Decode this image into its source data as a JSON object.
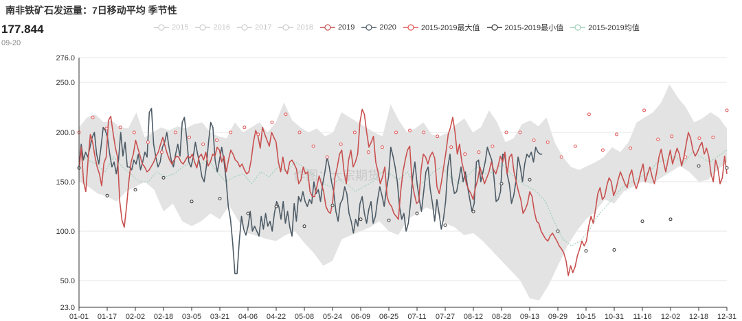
{
  "title": "南非铁矿石发运量：7日移动平均 季节性",
  "latest": {
    "value": "177.844",
    "date": "09-20"
  },
  "watermark": "作图：大宗期货",
  "legend": [
    {
      "name": "2015",
      "color": "#cccccc",
      "faded": true
    },
    {
      "name": "2016",
      "color": "#cccccc",
      "faded": true
    },
    {
      "name": "2017",
      "color": "#cccccc",
      "faded": true
    },
    {
      "name": "2018",
      "color": "#cccccc",
      "faded": true
    },
    {
      "name": "2019",
      "color": "#c8504f",
      "faded": false
    },
    {
      "name": "2020",
      "color": "#4d5b66",
      "faded": false
    },
    {
      "name": "2015-2019最大值",
      "color": "#e05555",
      "faded": false
    },
    {
      "name": "2015-2019最小值",
      "color": "#333333",
      "faded": false
    },
    {
      "name": "2015-2019均值",
      "color": "#9fd0b8",
      "faded": false
    }
  ],
  "colors": {
    "y2019": "#c8504f",
    "y2020": "#4d5b66",
    "max": "#e05555",
    "min": "#333333",
    "avg": "#9fd0b8",
    "band": "#e3e3e3",
    "axis": "#333333",
    "grid": "#e6e6e6"
  },
  "chart_data": {
    "type": "line",
    "xlabel": "",
    "ylabel": "",
    "y_ticks": [
      23.0,
      50.0,
      100.0,
      150.0,
      200.0,
      250.0,
      276.0
    ],
    "ylim": [
      23.0,
      276.0
    ],
    "x_ticks": [
      "01-01",
      "01-17",
      "02-02",
      "02-18",
      "03-05",
      "03-21",
      "04-06",
      "04-22",
      "05-08",
      "05-24",
      "06-09",
      "06-25",
      "07-11",
      "07-27",
      "08-12",
      "08-28",
      "09-13",
      "09-29",
      "10-15",
      "10-31",
      "11-16",
      "12-02",
      "12-18",
      "12-31"
    ],
    "grid": "horizontal",
    "series": [
      {
        "name": "2019",
        "key": "y2019",
        "values": [
          162,
          185,
          150,
          140,
          172,
          198,
          190,
          176,
          165,
          158,
          146,
          169,
          175,
          212,
          216,
          200,
          185,
          175,
          130,
          111,
          104,
          125,
          150,
          170,
          178,
          192,
          184,
          176,
          168,
          165,
          160,
          162,
          166,
          170,
          176,
          180,
          188,
          195,
          186,
          178,
          172,
          168,
          172,
          176,
          175,
          170,
          168,
          172,
          176,
          174,
          178,
          170,
          164,
          175,
          178,
          172,
          180,
          166,
          170,
          178,
          176,
          185,
          182,
          170,
          176,
          160,
          172,
          182,
          178,
          172,
          170,
          165,
          168,
          162,
          158,
          160,
          172,
          190,
          202,
          196,
          184,
          205,
          198,
          192,
          186,
          200,
          195,
          190,
          170,
          160,
          175,
          162,
          158,
          170,
          172,
          168,
          163,
          148,
          152,
          165,
          158,
          160,
          140,
          135,
          135,
          145,
          156,
          148,
          140,
          125,
          120,
          118,
          130,
          155,
          165,
          178,
          182,
          160,
          148,
          172,
          182,
          165,
          170,
          178,
          210,
          223,
          218,
          200,
          185,
          190,
          196,
          170,
          160,
          148,
          155,
          165,
          135,
          128,
          125,
          118,
          115,
          112,
          140,
          160,
          172,
          182,
          186,
          150,
          138,
          128,
          130,
          162,
          178,
          175,
          168,
          176,
          180,
          174,
          145,
          138,
          150,
          165,
          180,
          198,
          205,
          215,
          200,
          178,
          188,
          170,
          160,
          148,
          142,
          138,
          132,
          144,
          152,
          165,
          156,
          148,
          154,
          160,
          170,
          162,
          158,
          166,
          176,
          170,
          180,
          158,
          175,
          178,
          160,
          150,
          140,
          132,
          118,
          122,
          128,
          140,
          135,
          120,
          110,
          108,
          100,
          96,
          92,
          90,
          95,
          98,
          94,
          90,
          85,
          82,
          78,
          70,
          55,
          65,
          58,
          64,
          75,
          82,
          90,
          85,
          90,
          105,
          115,
          108,
          122,
          138,
          144,
          132,
          135,
          146,
          154,
          150,
          136,
          142,
          152,
          160,
          154,
          148,
          144,
          156,
          162,
          150,
          143,
          150,
          160,
          168,
          150,
          158,
          165,
          155,
          148,
          160,
          175,
          183,
          170,
          160,
          172,
          182,
          168,
          176,
          184,
          178,
          166,
          175,
          188,
          200,
          194,
          182,
          176,
          180,
          186,
          190,
          178,
          184,
          176,
          158,
          150,
          172,
          164,
          148,
          154,
          176,
          158
        ]
      },
      {
        "name": "2020",
        "key": "y2020",
        "values": [
          165,
          188,
          172,
          180,
          175,
          185,
          195,
          200,
          178,
          168,
          185,
          205,
          202,
          195,
          178,
          165,
          170,
          158,
          172,
          200,
          176,
          190,
          165,
          165,
          162,
          172,
          168,
          178,
          162,
          170,
          180,
          175,
          220,
          224,
          188,
          175,
          165,
          170,
          185,
          190,
          200,
          185,
          172,
          165,
          178,
          188,
          176,
          210,
          215,
          195,
          170,
          165,
          175,
          190,
          178,
          168,
          155,
          150,
          165,
          190,
          210,
          205,
          172,
          160,
          172,
          185,
          172,
          152,
          125,
          112,
          88,
          57,
          57,
          90,
          115,
          102,
          96,
          105,
          120,
          100,
          105,
          100,
          95,
          115,
          102,
          118,
          105,
          110,
          100,
          118,
          130,
          125,
          112,
          130,
          108,
          120,
          104,
          95,
          128,
          110,
          135,
          130,
          140,
          130,
          125,
          132,
          128,
          150,
          138,
          142,
          130,
          148,
          160,
          175,
          165,
          150,
          140,
          120,
          110,
          128,
          132,
          145,
          138,
          118,
          110,
          98,
          112,
          105,
          128,
          135,
          118,
          108,
          122,
          130,
          108,
          115,
          132,
          145,
          136,
          125,
          142,
          155,
          185,
          176,
          165,
          150,
          125,
          112,
          118,
          100,
          108,
          128,
          155,
          170,
          148,
          132,
          120,
          140,
          160,
          165,
          142,
          128,
          110,
          132,
          118,
          102,
          112,
          130,
          165,
          178,
          150,
          138,
          140,
          152,
          165,
          150,
          160,
          145,
          132,
          120,
          128,
          170,
          172,
          150,
          160,
          170,
          185,
          178,
          172,
          155,
          130,
          132,
          140,
          178,
          176,
          158,
          148,
          128,
          136,
          150,
          175,
          165,
          150,
          168,
          178,
          175,
          180,
          170,
          185,
          180,
          178,
          178
        ]
      },
      {
        "name": "2015-2019最大值",
        "key": "max",
        "values": [
          200,
          215,
          204,
          205,
          200,
          190,
          180,
          200,
          195,
          188,
          192,
          200,
          205,
          198,
          210,
          218,
          200,
          186,
          175,
          188,
          200,
          180,
          185,
          200,
          202,
          200,
          196,
          185,
          178,
          180,
          186,
          200,
          200,
          192,
          190,
          175,
          186,
          218,
          182,
          198,
          184,
          222,
          193,
          196,
          175,
          194,
          195,
          222
        ]
      },
      {
        "name": "2015-2019最小值",
        "key": "min",
        "values": [
          164,
          136,
          142,
          154,
          130,
          133,
          118,
          125,
          105,
          126,
          112,
          111,
          118,
          106,
          120,
          148,
          152,
          100,
          80,
          81,
          110,
          112,
          166,
          164
        ]
      },
      {
        "name": "2015-2019均值",
        "key": "avg",
        "values": [
          180,
          172,
          168,
          160,
          175,
          165,
          158,
          150,
          150,
          160,
          155,
          158,
          165,
          170,
          168,
          172,
          160,
          150,
          155,
          158,
          148,
          160,
          155,
          165,
          160,
          170,
          165,
          158,
          150,
          145,
          152,
          148,
          140,
          145,
          150,
          160,
          158,
          152,
          160,
          145,
          150,
          160,
          165,
          155,
          148,
          156,
          165,
          158,
          160,
          168,
          158,
          150,
          145,
          140,
          130,
          110,
          92,
          85,
          90,
          100,
          115,
          125,
          135,
          145,
          150,
          155,
          160,
          170,
          172,
          176,
          168,
          180,
          175,
          170,
          176,
          182
        ]
      },
      {
        "name": "band-upper",
        "key": "band_hi",
        "values": [
          205,
          215,
          218,
          210,
          212,
          205,
          204,
          220,
          195,
          200,
          205,
          202,
          206,
          204,
          208,
          210,
          200,
          196,
          194,
          210,
          200,
          205,
          210,
          200,
          210,
          230,
          212,
          205,
          200,
          204,
          196,
          200,
          220,
          215,
          210,
          205,
          200,
          196,
          228,
          212,
          200,
          204,
          210,
          198,
          196,
          200,
          208,
          214,
          200,
          205,
          222,
          210,
          190,
          194,
          208,
          212,
          206,
          215,
          190,
          175,
          165,
          162,
          166,
          170,
          175,
          185,
          180,
          190,
          210,
          215,
          220,
          230,
          248,
          235,
          225,
          210,
          214,
          220,
          215,
          204
        ]
      },
      {
        "name": "band-lower",
        "key": "band_lo",
        "values": [
          150,
          145,
          138,
          135,
          130,
          140,
          145,
          150,
          142,
          120,
          128,
          110,
          105,
          110,
          118,
          112,
          126,
          110,
          98,
          95,
          92,
          90,
          96,
          100,
          88,
          78,
          65,
          70,
          92,
          96,
          100,
          104,
          110,
          100,
          96,
          112,
          118,
          124,
          120,
          108,
          104,
          96,
          98,
          90,
          80,
          70,
          60,
          50,
          32,
          30,
          45,
          65,
          85,
          100,
          112,
          120,
          132,
          128,
          140,
          145,
          150,
          148,
          154,
          160,
          166,
          160,
          150,
          152,
          162,
          170
        ]
      }
    ]
  }
}
